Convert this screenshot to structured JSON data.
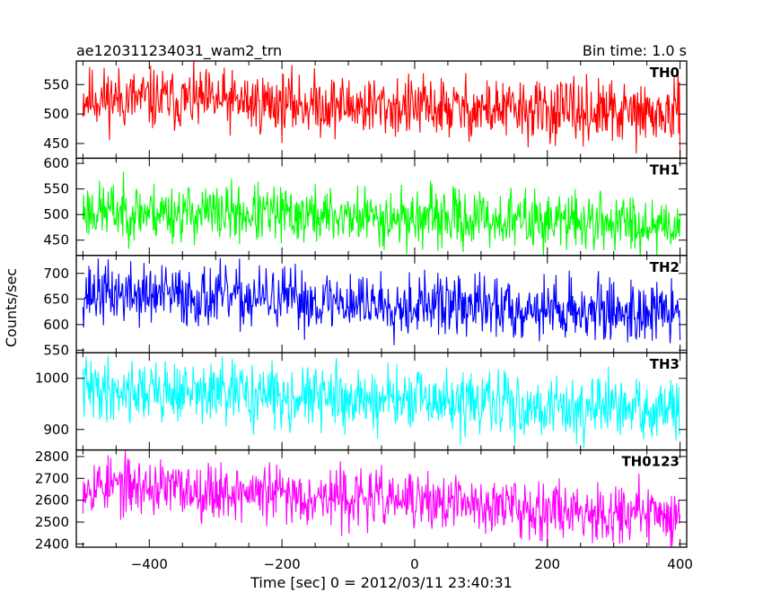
{
  "chart_data": {
    "type": "line",
    "title_left": "ae120311234031_wam2_trn",
    "title_right": "Bin time: 1.0 s",
    "xlabel": "Time [sec] 0 = 2012/03/11 23:40:31",
    "ylabel": "Counts/sec",
    "xlim": [
      -510,
      410
    ],
    "x_ticks": [
      -400,
      -200,
      0,
      200,
      400
    ],
    "x_range": [
      -500,
      400
    ],
    "series": [
      {
        "name": "TH0",
        "color": "#ff0000",
        "ylim": [
          425,
          590
        ],
        "y_ticks": [
          450,
          500,
          550
        ],
        "trend_start": 528,
        "trend_end": 498,
        "noise": 26,
        "seed": 11
      },
      {
        "name": "TH1",
        "color": "#00ff00",
        "ylim": [
          420,
          610
        ],
        "y_ticks": [
          450,
          500,
          550,
          600
        ],
        "trend_start": 508,
        "trend_end": 482,
        "noise": 28,
        "seed": 23
      },
      {
        "name": "TH2",
        "color": "#0000ff",
        "ylim": [
          545,
          735
        ],
        "y_ticks": [
          550,
          600,
          650,
          700
        ],
        "trend_start": 662,
        "trend_end": 622,
        "noise": 30,
        "seed": 37
      },
      {
        "name": "TH3",
        "color": "#00ffff",
        "ylim": [
          860,
          1050
        ],
        "y_ticks": [
          900,
          1000
        ],
        "trend_start": 980,
        "trend_end": 935,
        "noise": 30,
        "seed": 41
      },
      {
        "name": "TH0123",
        "color": "#ff00ff",
        "ylim": [
          2385,
          2830
        ],
        "y_ticks": [
          2400,
          2500,
          2600,
          2700,
          2800
        ],
        "trend_start": 2675,
        "trend_end": 2530,
        "noise": 65,
        "seed": 53
      }
    ]
  }
}
